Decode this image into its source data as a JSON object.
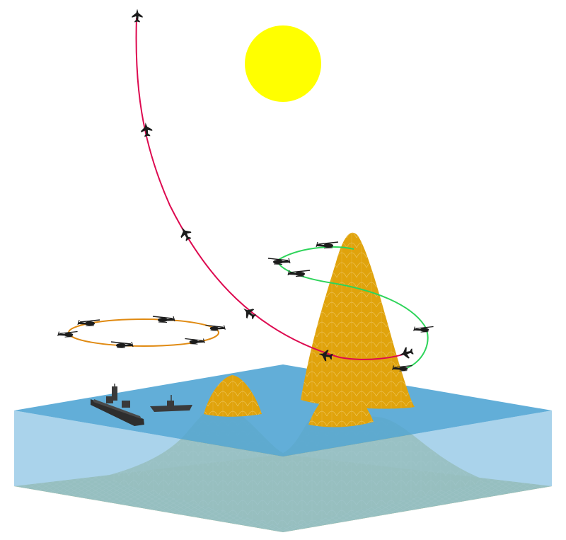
{
  "scene": {
    "colors": {
      "background": "#ffffff",
      "sun": "#ffff00",
      "water_top": "#5aaad6",
      "water_side": "#92c7e6",
      "terrain": "#e0a30c",
      "terrain_submerged": "#a6a23e",
      "grid_line": "#f2d27a",
      "missile_path": "#dd0a50",
      "helo_orbit_left": "#e08a12",
      "helo_orbit_right": "#2ed45a",
      "vehicle": "#1c1c1c",
      "ship": "#3a3a3a"
    },
    "icons": {
      "sun": "sun-icon",
      "jet": "jet-icon",
      "helicopter": "helicopter-icon",
      "battleship": "battleship-icon",
      "destroyer": "destroyer-icon"
    }
  }
}
